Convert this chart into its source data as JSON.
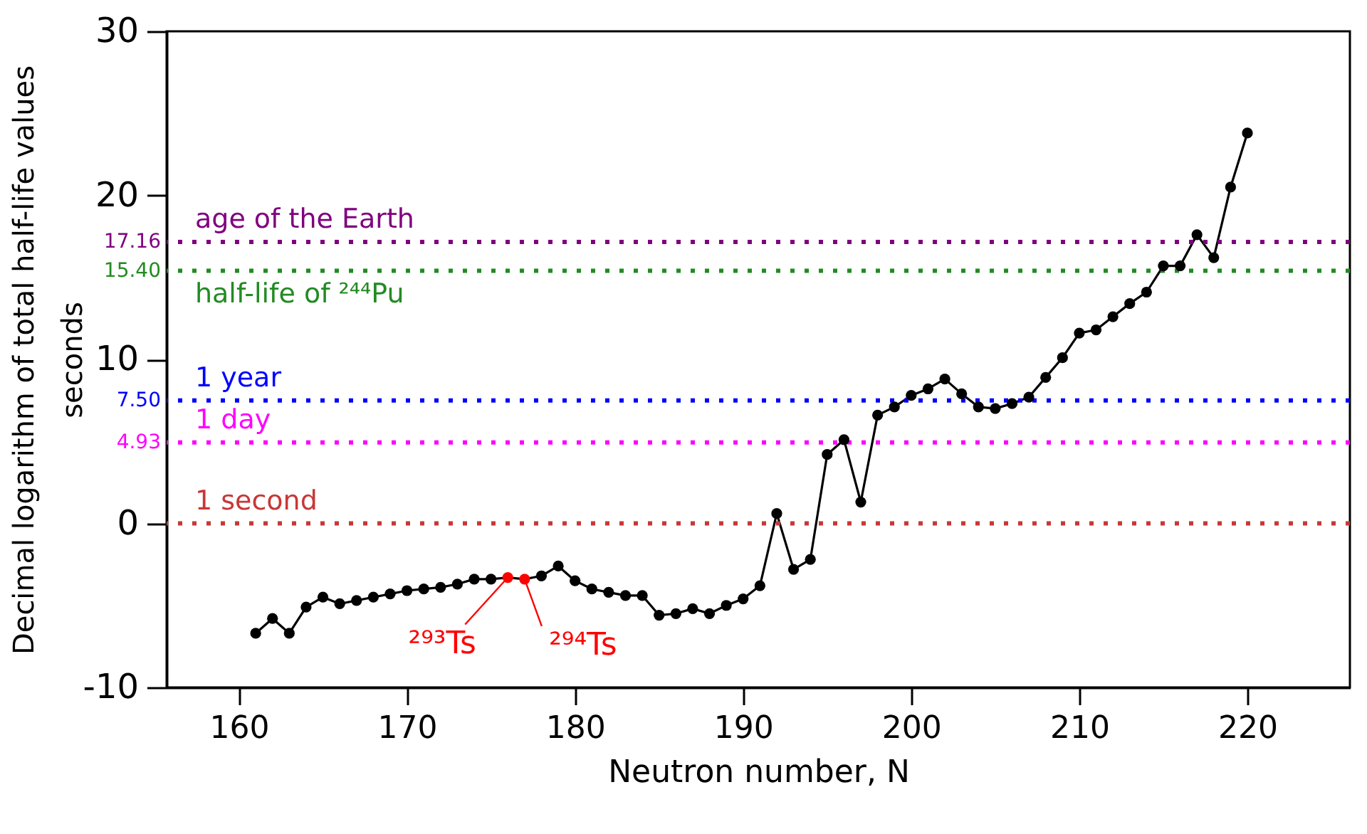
{
  "chart_data": {
    "type": "line",
    "xlabel": "Neutron number, N",
    "ylabel": "Decimal logarithm of total half-life values\nseconds",
    "x": [
      161,
      162,
      163,
      164,
      165,
      166,
      167,
      168,
      169,
      170,
      171,
      172,
      173,
      174,
      175,
      176,
      177,
      178,
      179,
      180,
      181,
      182,
      183,
      184,
      185,
      186,
      187,
      188,
      189,
      190,
      191,
      192,
      193,
      194,
      195,
      196,
      197,
      198,
      199,
      200,
      201,
      202,
      203,
      204,
      205,
      206,
      207,
      208,
      209,
      210,
      211,
      212,
      213,
      214,
      215,
      216,
      217,
      218,
      219,
      220
    ],
    "series": [
      {
        "color": "#000000",
        "colors": [
          "#000000",
          "#000000",
          "#000000",
          "#000000",
          "#000000",
          "#000000",
          "#000000",
          "#000000",
          "#000000",
          "#000000",
          "#000000",
          "#000000",
          "#000000",
          "#000000",
          "#000000",
          "#ff0000",
          "#ff0000",
          "#000000",
          "#000000",
          "#000000",
          "#000000",
          "#000000",
          "#000000",
          "#000000",
          "#000000",
          "#000000",
          "#000000",
          "#000000",
          "#000000",
          "#000000",
          "#000000",
          "#000000",
          "#000000",
          "#000000",
          "#000000",
          "#000000",
          "#000000",
          "#000000",
          "#000000",
          "#000000",
          "#000000",
          "#000000",
          "#000000",
          "#000000",
          "#000000",
          "#000000",
          "#000000",
          "#000000",
          "#000000",
          "#000000",
          "#000000",
          "#000000",
          "#000000",
          "#000000",
          "#000000",
          "#000000",
          "#000000",
          "#000000",
          "#000000",
          "#000000"
        ],
        "values": [
          -6.7,
          -5.8,
          -6.7,
          -5.1,
          -4.5,
          -4.9,
          -4.7,
          -4.5,
          -4.3,
          -4.1,
          -4.0,
          -3.9,
          -3.7,
          -3.4,
          -3.4,
          -3.3,
          -3.4,
          -3.2,
          -2.6,
          -3.5,
          -4.0,
          -4.2,
          -4.4,
          -4.4,
          -5.6,
          -5.5,
          -5.2,
          -5.5,
          -5.0,
          -4.6,
          -3.8,
          0.6,
          -2.8,
          -2.2,
          4.2,
          5.1,
          1.3,
          6.6,
          7.1,
          7.8,
          8.2,
          8.8,
          7.9,
          7.1,
          7.0,
          7.3,
          7.7,
          8.9,
          10.1,
          11.6,
          11.8,
          12.6,
          13.4,
          14.1,
          15.7,
          15.7,
          17.6,
          16.2,
          20.5,
          23.8
        ]
      }
    ],
    "marker": "circle",
    "line_style": "solid",
    "grid": false,
    "xlim": [
      155.7,
      226.1
    ],
    "ylim": [
      -10,
      30
    ],
    "xticks": [
      160,
      170,
      180,
      190,
      200,
      210,
      220
    ],
    "yticks": [
      -10,
      0,
      10,
      20,
      30
    ],
    "ref_lines": [
      {
        "axis": "y",
        "value": 17.16,
        "label": "age of the Earth",
        "color": "#800080",
        "line_style": "dotted"
      },
      {
        "axis": "y",
        "value": 15.4,
        "label": "half-life of ²⁴⁴Pu",
        "color": "#228b22",
        "line_style": "dotted"
      },
      {
        "axis": "y",
        "value": 7.5,
        "label": "1 year",
        "color": "#0000ff",
        "line_style": "dotted"
      },
      {
        "axis": "y",
        "value": 4.93,
        "label": "1 day",
        "color": "#ff00ff",
        "line_style": "dotted"
      },
      {
        "axis": "y",
        "value": 0,
        "label": "1 second",
        "color": "#c83737",
        "line_style": "dotted"
      }
    ],
    "annotations": [
      {
        "text": "17.16",
        "x": 155.7,
        "y": 17.16
      },
      {
        "text": "15.40",
        "x": 155.7,
        "y": 15.4
      },
      {
        "text": "7.50",
        "x": 155.7,
        "y": 7.5
      },
      {
        "text": "4.93",
        "x": 155.7,
        "y": 4.93
      },
      {
        "text": "²⁹³Ts",
        "x": 176,
        "y": -3.3
      },
      {
        "text": "²⁹⁴Ts",
        "x": 177,
        "y": -3.4
      }
    ]
  }
}
